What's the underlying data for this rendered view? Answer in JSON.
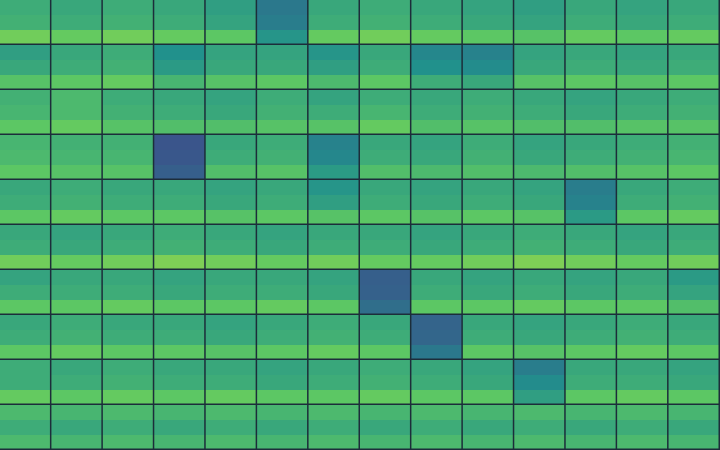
{
  "chart_data": {
    "type": "heatmap",
    "tick_labels": false,
    "grid": false,
    "value_range": [
      0,
      1
    ],
    "tiles": [
      [
        [
          0.62,
          0.64,
          0.78
        ],
        [
          0.6,
          0.62,
          0.76
        ],
        [
          0.62,
          0.64,
          0.78
        ],
        [
          0.6,
          0.62,
          0.76
        ],
        [
          0.56,
          0.58,
          0.74
        ],
        [
          0.4,
          0.42,
          0.52
        ],
        [
          0.6,
          0.62,
          0.76
        ],
        [
          0.62,
          0.64,
          0.78
        ],
        [
          0.6,
          0.62,
          0.76
        ],
        [
          0.58,
          0.6,
          0.74
        ],
        [
          0.56,
          0.58,
          0.72
        ],
        [
          0.6,
          0.62,
          0.76
        ],
        [
          0.58,
          0.6,
          0.74
        ],
        [
          0.6,
          0.62,
          0.76
        ]
      ],
      [
        [
          0.56,
          0.6,
          0.72
        ],
        [
          0.6,
          0.62,
          0.74
        ],
        [
          0.62,
          0.64,
          0.76
        ],
        [
          0.5,
          0.54,
          0.66
        ],
        [
          0.58,
          0.6,
          0.72
        ],
        [
          0.58,
          0.6,
          0.74
        ],
        [
          0.52,
          0.56,
          0.68
        ],
        [
          0.6,
          0.62,
          0.74
        ],
        [
          0.46,
          0.5,
          0.62
        ],
        [
          0.44,
          0.48,
          0.6
        ],
        [
          0.58,
          0.6,
          0.72
        ],
        [
          0.6,
          0.62,
          0.74
        ],
        [
          0.58,
          0.6,
          0.72
        ],
        [
          0.6,
          0.62,
          0.74
        ]
      ],
      [
        [
          0.64,
          0.66,
          0.74
        ],
        [
          0.68,
          0.68,
          0.76
        ],
        [
          0.62,
          0.64,
          0.72
        ],
        [
          0.6,
          0.62,
          0.7
        ],
        [
          0.58,
          0.6,
          0.7
        ],
        [
          0.62,
          0.64,
          0.72
        ],
        [
          0.58,
          0.62,
          0.72
        ],
        [
          0.62,
          0.66,
          0.76
        ],
        [
          0.6,
          0.62,
          0.7
        ],
        [
          0.62,
          0.64,
          0.72
        ],
        [
          0.6,
          0.62,
          0.7
        ],
        [
          0.58,
          0.6,
          0.7
        ],
        [
          0.6,
          0.62,
          0.72
        ],
        [
          0.62,
          0.64,
          0.72
        ]
      ],
      [
        [
          0.66,
          0.68,
          0.74
        ],
        [
          0.64,
          0.66,
          0.72
        ],
        [
          0.64,
          0.66,
          0.72
        ],
        [
          0.26,
          0.27,
          0.3
        ],
        [
          0.6,
          0.62,
          0.7
        ],
        [
          0.62,
          0.64,
          0.72
        ],
        [
          0.44,
          0.46,
          0.54
        ],
        [
          0.6,
          0.62,
          0.7
        ],
        [
          0.58,
          0.6,
          0.68
        ],
        [
          0.62,
          0.64,
          0.7
        ],
        [
          0.58,
          0.6,
          0.68
        ],
        [
          0.6,
          0.62,
          0.7
        ],
        [
          0.62,
          0.64,
          0.72
        ],
        [
          0.64,
          0.66,
          0.74
        ]
      ],
      [
        [
          0.6,
          0.62,
          0.74
        ],
        [
          0.62,
          0.64,
          0.76
        ],
        [
          0.6,
          0.62,
          0.74
        ],
        [
          0.6,
          0.62,
          0.74
        ],
        [
          0.58,
          0.6,
          0.72
        ],
        [
          0.6,
          0.62,
          0.74
        ],
        [
          0.52,
          0.56,
          0.72
        ],
        [
          0.6,
          0.62,
          0.74
        ],
        [
          0.58,
          0.6,
          0.72
        ],
        [
          0.6,
          0.62,
          0.74
        ],
        [
          0.58,
          0.6,
          0.72
        ],
        [
          0.42,
          0.44,
          0.54
        ],
        [
          0.6,
          0.62,
          0.74
        ],
        [
          0.62,
          0.64,
          0.76
        ]
      ],
      [
        [
          0.6,
          0.62,
          0.78
        ],
        [
          0.58,
          0.6,
          0.76
        ],
        [
          0.6,
          0.62,
          0.78
        ],
        [
          0.62,
          0.64,
          0.8
        ],
        [
          0.6,
          0.62,
          0.78
        ],
        [
          0.58,
          0.6,
          0.76
        ],
        [
          0.6,
          0.62,
          0.78
        ],
        [
          0.6,
          0.62,
          0.76
        ],
        [
          0.58,
          0.6,
          0.76
        ],
        [
          0.6,
          0.62,
          0.78
        ],
        [
          0.62,
          0.64,
          0.8
        ],
        [
          0.6,
          0.62,
          0.78
        ],
        [
          0.58,
          0.6,
          0.76
        ],
        [
          0.6,
          0.62,
          0.78
        ]
      ],
      [
        [
          0.58,
          0.62,
          0.74
        ],
        [
          0.6,
          0.62,
          0.74
        ],
        [
          0.6,
          0.62,
          0.76
        ],
        [
          0.58,
          0.6,
          0.74
        ],
        [
          0.6,
          0.62,
          0.74
        ],
        [
          0.6,
          0.62,
          0.76
        ],
        [
          0.58,
          0.6,
          0.74
        ],
        [
          0.3,
          0.31,
          0.36
        ],
        [
          0.6,
          0.62,
          0.74
        ],
        [
          0.58,
          0.6,
          0.74
        ],
        [
          0.6,
          0.62,
          0.76
        ],
        [
          0.58,
          0.6,
          0.74
        ],
        [
          0.6,
          0.62,
          0.74
        ],
        [
          0.54,
          0.58,
          0.7
        ]
      ],
      [
        [
          0.6,
          0.62,
          0.74
        ],
        [
          0.62,
          0.64,
          0.76
        ],
        [
          0.6,
          0.62,
          0.74
        ],
        [
          0.6,
          0.62,
          0.74
        ],
        [
          0.58,
          0.6,
          0.72
        ],
        [
          0.6,
          0.62,
          0.74
        ],
        [
          0.62,
          0.64,
          0.76
        ],
        [
          0.6,
          0.62,
          0.74
        ],
        [
          0.32,
          0.33,
          0.4
        ],
        [
          0.6,
          0.62,
          0.74
        ],
        [
          0.58,
          0.6,
          0.72
        ],
        [
          0.6,
          0.62,
          0.74
        ],
        [
          0.62,
          0.64,
          0.76
        ],
        [
          0.6,
          0.62,
          0.74
        ]
      ],
      [
        [
          0.62,
          0.62,
          0.76
        ],
        [
          0.6,
          0.62,
          0.74
        ],
        [
          0.62,
          0.64,
          0.76
        ],
        [
          0.6,
          0.62,
          0.74
        ],
        [
          0.6,
          0.62,
          0.76
        ],
        [
          0.58,
          0.6,
          0.74
        ],
        [
          0.6,
          0.62,
          0.74
        ],
        [
          0.62,
          0.64,
          0.76
        ],
        [
          0.6,
          0.62,
          0.74
        ],
        [
          0.58,
          0.6,
          0.74
        ],
        [
          0.42,
          0.48,
          0.56
        ],
        [
          0.6,
          0.62,
          0.74
        ],
        [
          0.6,
          0.62,
          0.76
        ],
        [
          0.58,
          0.6,
          0.74
        ]
      ],
      [
        [
          0.68,
          0.62,
          0.68
        ],
        [
          0.66,
          0.6,
          0.66
        ],
        [
          0.68,
          0.62,
          0.68
        ],
        [
          0.66,
          0.6,
          0.66
        ],
        [
          0.68,
          0.62,
          0.68
        ],
        [
          0.66,
          0.6,
          0.66
        ],
        [
          0.68,
          0.62,
          0.68
        ],
        [
          0.66,
          0.6,
          0.66
        ],
        [
          0.68,
          0.62,
          0.68
        ],
        [
          0.66,
          0.6,
          0.66
        ],
        [
          0.68,
          0.62,
          0.68
        ],
        [
          0.66,
          0.6,
          0.66
        ],
        [
          0.68,
          0.62,
          0.68
        ],
        [
          0.66,
          0.6,
          0.66
        ]
      ]
    ]
  }
}
